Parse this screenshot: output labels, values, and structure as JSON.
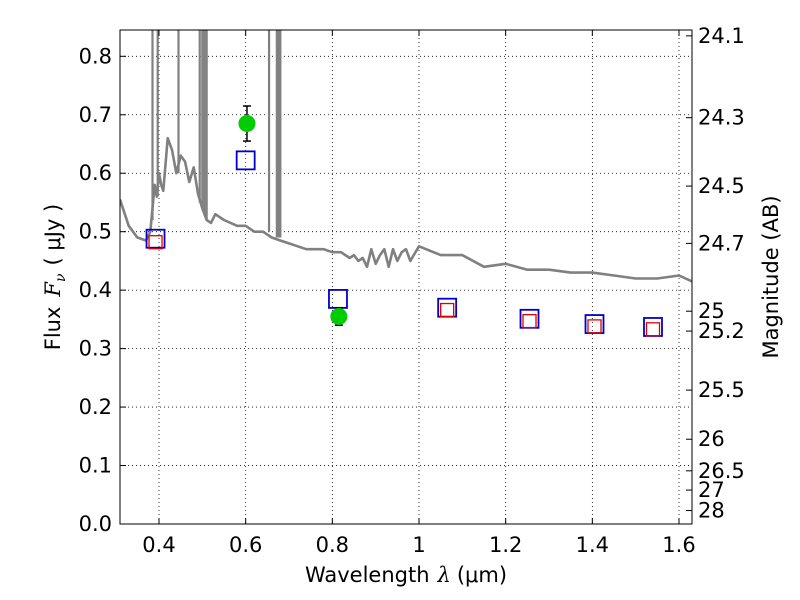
{
  "chart_data": {
    "type": "scatter",
    "xlabel": {
      "text": "Wavelength",
      "symbol": "λ",
      "unit": "(μm)"
    },
    "ylabel": {
      "text": "Flux",
      "symbol": "F",
      "subscript": "ν",
      "unit": "( μJy )"
    },
    "ylabel_right": "Magnitude (AB)",
    "xlim": [
      0.31,
      1.63
    ],
    "ylim": [
      0.0,
      0.845
    ],
    "x_ticks": [
      0.4,
      0.6,
      0.8,
      1.0,
      1.2,
      1.4,
      1.6
    ],
    "x_tick_labels": [
      "0.4",
      "0.6",
      "0.8",
      "1",
      "1.2",
      "1.4",
      "1.6"
    ],
    "y_ticks": [
      0.0,
      0.1,
      0.2,
      0.3,
      0.4,
      0.5,
      0.6,
      0.7,
      0.8
    ],
    "y_tick_labels": [
      "0.0",
      "0.1",
      "0.2",
      "0.3",
      "0.4",
      "0.5",
      "0.6",
      "0.7",
      "0.8"
    ],
    "mag_ticks": [
      {
        "flux": 0.835,
        "label": "24.1"
      },
      {
        "flux": 0.695,
        "label": "24.3"
      },
      {
        "flux": 0.578,
        "label": "24.5"
      },
      {
        "flux": 0.48,
        "label": "24.7"
      },
      {
        "flux": 0.364,
        "label": "25"
      },
      {
        "flux": 0.33,
        "label": "25.2"
      },
      {
        "flux": 0.229,
        "label": "25.5"
      },
      {
        "flux": 0.145,
        "label": "26"
      },
      {
        "flux": 0.091,
        "label": "26.5"
      },
      {
        "flux": 0.058,
        "label": "27"
      },
      {
        "flux": 0.023,
        "label": "28"
      }
    ],
    "grid": true,
    "series": [
      {
        "name": "model spectrum",
        "kind": "line",
        "color": "#808080",
        "x": [
          0.31,
          0.33,
          0.35,
          0.37,
          0.38,
          0.385,
          0.39,
          0.395,
          0.4,
          0.405,
          0.41,
          0.42,
          0.43,
          0.44,
          0.45,
          0.46,
          0.47,
          0.48,
          0.49,
          0.5,
          0.51,
          0.52,
          0.53,
          0.55,
          0.58,
          0.6,
          0.62,
          0.64,
          0.66,
          0.68,
          0.7,
          0.72,
          0.74,
          0.76,
          0.78,
          0.8,
          0.82,
          0.84,
          0.85,
          0.86,
          0.87,
          0.88,
          0.89,
          0.9,
          0.91,
          0.92,
          0.93,
          0.94,
          0.95,
          0.96,
          0.97,
          0.98,
          1.0,
          1.05,
          1.1,
          1.15,
          1.2,
          1.25,
          1.3,
          1.35,
          1.4,
          1.45,
          1.5,
          1.55,
          1.6,
          1.63
        ],
        "y": [
          0.555,
          0.51,
          0.49,
          0.485,
          0.5,
          0.54,
          0.58,
          0.56,
          0.6,
          0.58,
          0.57,
          0.66,
          0.64,
          0.6,
          0.63,
          0.62,
          0.585,
          0.61,
          0.565,
          0.54,
          0.52,
          0.515,
          0.53,
          0.52,
          0.51,
          0.51,
          0.5,
          0.5,
          0.49,
          0.485,
          0.48,
          0.475,
          0.47,
          0.47,
          0.47,
          0.465,
          0.465,
          0.455,
          0.46,
          0.45,
          0.455,
          0.44,
          0.47,
          0.445,
          0.46,
          0.47,
          0.44,
          0.47,
          0.45,
          0.465,
          0.47,
          0.45,
          0.475,
          0.46,
          0.46,
          0.44,
          0.445,
          0.435,
          0.435,
          0.43,
          0.43,
          0.425,
          0.42,
          0.42,
          0.425,
          0.415
        ]
      },
      {
        "name": "spectrum spikes",
        "kind": "vlines",
        "color": "#808080",
        "x": [
          0.385,
          0.397,
          0.445,
          0.494,
          0.5,
          0.505,
          0.51,
          0.654,
          0.672,
          0.676,
          0.68
        ],
        "y_from": [
          0.52,
          0.56,
          0.6,
          0.55,
          0.54,
          0.53,
          0.52,
          0.5,
          0.49,
          0.49,
          0.49
        ],
        "y_to": [
          0.845,
          0.845,
          0.845,
          0.845,
          0.845,
          0.845,
          0.845,
          0.845,
          0.845,
          0.845,
          0.845
        ]
      },
      {
        "name": "model photometry (blue)",
        "kind": "scatter",
        "marker": "open-square",
        "color": "#0000cc",
        "x": [
          0.392,
          0.6,
          0.813,
          1.065,
          1.255,
          1.405,
          1.54
        ],
        "y": [
          0.488,
          0.622,
          0.385,
          0.37,
          0.351,
          0.342,
          0.337
        ]
      },
      {
        "name": "model photometry (red)",
        "kind": "scatter",
        "marker": "open-square",
        "color": "#e00000",
        "x": [
          0.392,
          1.065,
          1.255,
          1.405,
          1.54
        ],
        "y": [
          0.482,
          0.366,
          0.347,
          0.338,
          0.333
        ]
      },
      {
        "name": "observed photometry",
        "kind": "scatter",
        "marker": "filled-circle",
        "color": "#00cc00",
        "x": [
          0.603,
          0.815
        ],
        "y": [
          0.685,
          0.355
        ],
        "yerr": [
          0.03,
          0.015
        ]
      }
    ]
  }
}
